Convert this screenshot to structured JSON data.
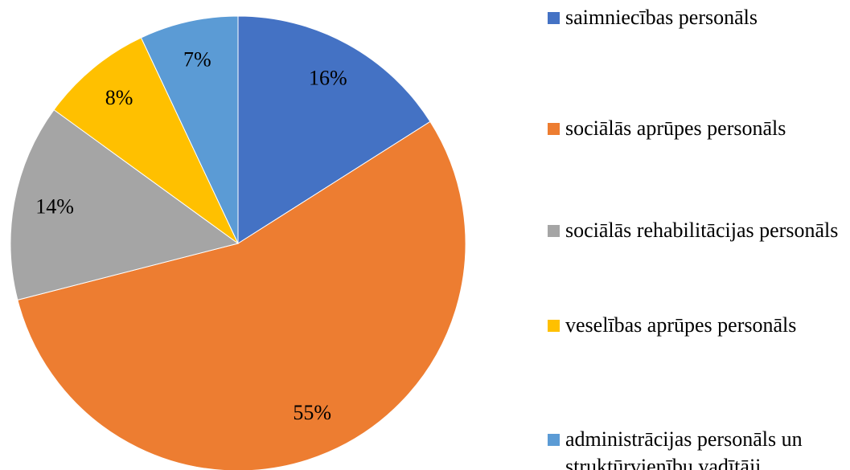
{
  "chart_data": {
    "type": "pie",
    "categories": [
      "saimniecības personāls",
      "sociālās aprūpes personāls",
      "sociālās rehabilitācijas personāls",
      "veselības aprūpes personāls",
      "administrācijas personāls un struktūrvienību vadītāji"
    ],
    "values": [
      16,
      55,
      14,
      8,
      7
    ],
    "value_labels": [
      "16%",
      "55%",
      "14%",
      "8%",
      "7%"
    ],
    "colors": [
      "#4472c4",
      "#ed7d31",
      "#a5a5a5",
      "#ffc000",
      "#5b9bd5"
    ]
  }
}
